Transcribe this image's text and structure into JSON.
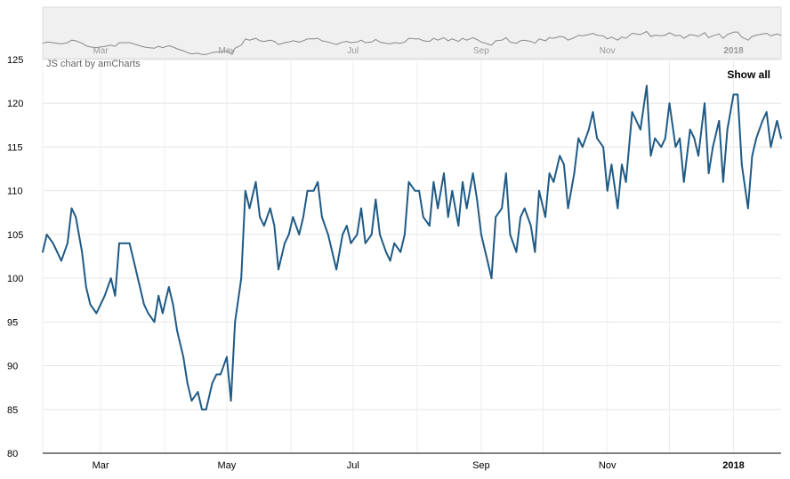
{
  "chart_data": {
    "type": "line",
    "credit": "JS chart by amCharts",
    "zoom_button": "Show all",
    "ylim": [
      80,
      125
    ],
    "y_ticks": [
      80,
      85,
      90,
      95,
      100,
      105,
      110,
      115,
      120,
      125
    ],
    "x_tick_labels": [
      "Mar",
      "May",
      "Jul",
      "Sep",
      "Nov",
      "2018"
    ],
    "x_tick_bold": [
      false,
      false,
      false,
      false,
      false,
      true
    ],
    "grid": true,
    "scrollbar": true,
    "series": [
      {
        "color": "#1f5a85",
        "x": [
          "2017-02-01",
          "2017-02-03",
          "2017-02-06",
          "2017-02-08",
          "2017-02-10",
          "2017-02-13",
          "2017-02-15",
          "2017-02-17",
          "2017-02-20",
          "2017-02-22",
          "2017-02-24",
          "2017-02-27",
          "2017-03-01",
          "2017-03-03",
          "2017-03-06",
          "2017-03-08",
          "2017-03-10",
          "2017-03-13",
          "2017-03-15",
          "2017-03-17",
          "2017-03-20",
          "2017-03-22",
          "2017-03-24",
          "2017-03-27",
          "2017-03-29",
          "2017-03-31",
          "2017-04-03",
          "2017-04-05",
          "2017-04-07",
          "2017-04-10",
          "2017-04-12",
          "2017-04-14",
          "2017-04-17",
          "2017-04-19",
          "2017-04-21",
          "2017-04-24",
          "2017-04-26",
          "2017-04-28",
          "2017-05-01",
          "2017-05-03",
          "2017-05-05",
          "2017-05-08",
          "2017-05-10",
          "2017-05-12",
          "2017-05-15",
          "2017-05-17",
          "2017-05-19",
          "2017-05-22",
          "2017-05-24",
          "2017-05-26",
          "2017-05-29",
          "2017-05-31",
          "2017-06-02",
          "2017-06-05",
          "2017-06-07",
          "2017-06-09",
          "2017-06-12",
          "2017-06-14",
          "2017-06-16",
          "2017-06-19",
          "2017-06-21",
          "2017-06-23",
          "2017-06-26",
          "2017-06-28",
          "2017-06-30",
          "2017-07-03",
          "2017-07-05",
          "2017-07-07",
          "2017-07-10",
          "2017-07-12",
          "2017-07-14",
          "2017-07-17",
          "2017-07-19",
          "2017-07-21",
          "2017-07-24",
          "2017-07-26",
          "2017-07-28",
          "2017-07-31",
          "2017-08-02",
          "2017-08-04",
          "2017-08-07",
          "2017-08-09",
          "2017-08-11",
          "2017-08-14",
          "2017-08-16",
          "2017-08-18",
          "2017-08-21",
          "2017-08-23",
          "2017-08-25",
          "2017-08-28",
          "2017-08-30",
          "2017-09-01",
          "2017-09-04",
          "2017-09-06",
          "2017-09-08",
          "2017-09-11",
          "2017-09-13",
          "2017-09-15",
          "2017-09-18",
          "2017-09-20",
          "2017-09-22",
          "2017-09-25",
          "2017-09-27",
          "2017-09-29",
          "2017-10-02",
          "2017-10-04",
          "2017-10-06",
          "2017-10-09",
          "2017-10-11",
          "2017-10-13",
          "2017-10-16",
          "2017-10-18",
          "2017-10-20",
          "2017-10-23",
          "2017-10-25",
          "2017-10-27",
          "2017-10-30",
          "2017-11-01",
          "2017-11-03",
          "2017-11-06",
          "2017-11-08",
          "2017-11-10",
          "2017-11-13",
          "2017-11-15",
          "2017-11-17",
          "2017-11-20",
          "2017-11-22",
          "2017-11-24",
          "2017-11-27",
          "2017-11-29",
          "2017-12-01",
          "2017-12-04",
          "2017-12-06",
          "2017-12-08",
          "2017-12-11",
          "2017-12-13",
          "2017-12-15",
          "2017-12-18",
          "2017-12-20",
          "2017-12-22",
          "2017-12-25",
          "2017-12-27",
          "2017-12-29",
          "2018-01-01",
          "2018-01-03",
          "2018-01-05",
          "2018-01-08",
          "2018-01-10",
          "2018-01-12",
          "2018-01-15",
          "2018-01-17",
          "2018-01-19",
          "2018-01-22",
          "2018-01-24"
        ],
        "y": [
          103,
          105,
          104,
          103,
          102,
          104,
          108,
          107,
          103,
          99,
          97,
          96,
          97,
          98,
          100,
          98,
          104,
          104,
          104,
          102,
          99,
          97,
          96,
          95,
          98,
          96,
          99,
          97,
          94,
          91,
          88,
          86,
          87,
          85,
          85,
          88,
          89,
          89,
          91,
          86,
          95,
          100,
          110,
          108,
          111,
          107,
          106,
          108,
          106,
          101,
          104,
          105,
          107,
          105,
          107,
          110,
          110,
          111,
          107,
          105,
          103,
          101,
          105,
          106,
          104,
          105,
          108,
          104,
          105,
          109,
          105,
          103,
          102,
          104,
          103,
          105,
          111,
          110,
          110,
          107,
          106,
          111,
          108,
          112,
          107,
          110,
          106,
          111,
          108,
          112,
          109,
          105,
          102,
          100,
          107,
          108,
          112,
          105,
          103,
          107,
          108,
          106,
          103,
          110,
          107,
          112,
          111,
          114,
          113,
          108,
          112,
          116,
          115,
          117,
          119,
          116,
          115,
          110,
          113,
          108,
          113,
          111,
          119,
          118,
          117,
          122,
          114,
          116,
          115,
          116,
          120,
          115,
          116,
          111,
          117,
          116,
          114,
          120,
          112,
          115,
          118,
          111,
          117,
          121,
          121,
          113,
          108,
          114,
          116,
          118,
          119,
          115,
          118,
          116
        ]
      }
    ]
  }
}
